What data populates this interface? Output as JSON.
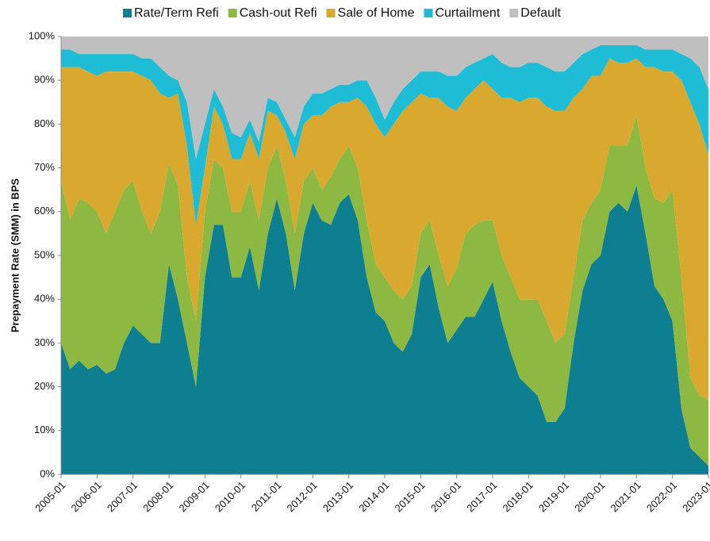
{
  "chart_data": {
    "type": "stacked-area",
    "y_label": "Prepayment Rate (SMM) in BPS",
    "x": [
      "2005-01",
      "2005-04",
      "2005-07",
      "2005-10",
      "2006-01",
      "2006-04",
      "2006-07",
      "2006-10",
      "2007-01",
      "2007-04",
      "2007-07",
      "2007-10",
      "2008-01",
      "2008-04",
      "2008-07",
      "2008-10",
      "2009-01",
      "2009-04",
      "2009-07",
      "2009-10",
      "2010-01",
      "2010-04",
      "2010-07",
      "2010-10",
      "2011-01",
      "2011-04",
      "2011-07",
      "2011-10",
      "2012-01",
      "2012-04",
      "2012-07",
      "2012-10",
      "2013-01",
      "2013-04",
      "2013-07",
      "2013-10",
      "2014-01",
      "2014-04",
      "2014-07",
      "2014-10",
      "2015-01",
      "2015-04",
      "2015-07",
      "2015-10",
      "2016-01",
      "2016-04",
      "2016-07",
      "2016-10",
      "2017-01",
      "2017-04",
      "2017-07",
      "2017-10",
      "2018-01",
      "2018-04",
      "2018-07",
      "2018-10",
      "2019-01",
      "2019-04",
      "2019-07",
      "2019-10",
      "2020-01",
      "2020-04",
      "2020-07",
      "2020-10",
      "2021-01",
      "2021-04",
      "2021-07",
      "2021-10",
      "2022-01",
      "2022-04",
      "2022-07",
      "2022-10",
      "2023-01"
    ],
    "series": [
      {
        "name": "Rate/Term Refi",
        "color": "#0e7f91",
        "values": [
          30,
          24,
          26,
          24,
          25,
          23,
          24,
          30,
          34,
          32,
          30,
          30,
          48,
          40,
          30,
          20,
          45,
          57,
          57,
          45,
          45,
          52,
          42,
          55,
          63,
          55,
          42,
          55,
          62,
          58,
          57,
          62,
          64,
          58,
          45,
          37,
          35,
          30,
          28,
          32,
          45,
          48,
          38,
          30,
          33,
          36,
          36,
          40,
          44,
          35,
          28,
          22,
          20,
          18,
          12,
          12,
          15,
          30,
          42,
          48,
          50,
          60,
          62,
          60,
          66,
          55,
          43,
          40,
          35,
          15,
          6,
          4,
          2
        ]
      },
      {
        "name": "Cash-out Refi",
        "color": "#8db943",
        "values": [
          37,
          34,
          37,
          38,
          35,
          32,
          36,
          35,
          33,
          28,
          25,
          30,
          23,
          26,
          15,
          15,
          15,
          15,
          13,
          15,
          15,
          15,
          16,
          15,
          12,
          12,
          13,
          12,
          8,
          7,
          11,
          10,
          11,
          12,
          13,
          11,
          10,
          12,
          12,
          11,
          10,
          10,
          12,
          13,
          14,
          19,
          21,
          18,
          14,
          15,
          17,
          18,
          20,
          22,
          23,
          18,
          17,
          15,
          16,
          14,
          15,
          15,
          13,
          15,
          16,
          15,
          20,
          22,
          30,
          30,
          16,
          14,
          15
        ]
      },
      {
        "name": "Sale of Home",
        "color": "#d9a82e",
        "values": [
          26,
          35,
          30,
          30,
          31,
          37,
          32,
          27,
          25,
          31,
          35,
          27,
          15,
          21,
          30,
          22,
          10,
          12,
          10,
          12,
          12,
          11,
          14,
          13,
          7,
          11,
          17,
          13,
          12,
          17,
          16,
          13,
          10,
          16,
          26,
          32,
          32,
          38,
          43,
          42,
          32,
          28,
          36,
          41,
          36,
          31,
          31,
          32,
          30,
          36,
          41,
          45,
          46,
          46,
          49,
          53,
          51,
          41,
          30,
          29,
          26,
          20,
          19,
          19,
          13,
          23,
          30,
          30,
          27,
          45,
          63,
          62,
          56
        ]
      },
      {
        "name": "Curtailment",
        "color": "#1fbdd5",
        "values": [
          4,
          4,
          3,
          4,
          5,
          4,
          4,
          4,
          4,
          4,
          5,
          6,
          5,
          3,
          10,
          15,
          10,
          4,
          4,
          6,
          5,
          3,
          4,
          3,
          3,
          3,
          5,
          4,
          5,
          5,
          4,
          4,
          4,
          4,
          6,
          6,
          4,
          5,
          5,
          5,
          5,
          6,
          6,
          7,
          8,
          7,
          6,
          5,
          8,
          8,
          7,
          8,
          8,
          8,
          9,
          9,
          9,
          8,
          8,
          6,
          7,
          3,
          4,
          4,
          3,
          4,
          4,
          5,
          5,
          6,
          10,
          13,
          15
        ]
      },
      {
        "name": "Default",
        "color": "#bfbfbf",
        "values": [
          3,
          3,
          4,
          4,
          4,
          4,
          4,
          4,
          4,
          5,
          5,
          7,
          9,
          10,
          15,
          28,
          20,
          12,
          16,
          22,
          23,
          19,
          24,
          14,
          15,
          19,
          23,
          16,
          13,
          13,
          12,
          11,
          11,
          10,
          10,
          14,
          19,
          15,
          12,
          10,
          8,
          8,
          8,
          9,
          9,
          7,
          6,
          5,
          4,
          6,
          7,
          7,
          6,
          6,
          7,
          8,
          8,
          6,
          4,
          3,
          2,
          2,
          2,
          2,
          2,
          3,
          3,
          3,
          3,
          4,
          5,
          7,
          12
        ]
      }
    ],
    "ylim": [
      0,
      100
    ],
    "yticks": [
      {
        "value": 0,
        "label": "0%"
      },
      {
        "value": 10,
        "label": "10%"
      },
      {
        "value": 20,
        "label": "20%"
      },
      {
        "value": 30,
        "label": "30%"
      },
      {
        "value": 40,
        "label": "40%"
      },
      {
        "value": 50,
        "label": "50%"
      },
      {
        "value": 60,
        "label": "60%"
      },
      {
        "value": 70,
        "label": "70%"
      },
      {
        "value": 80,
        "label": "80%"
      },
      {
        "value": 90,
        "label": "90%"
      },
      {
        "value": 100,
        "label": "100%"
      }
    ],
    "legend": "top"
  }
}
